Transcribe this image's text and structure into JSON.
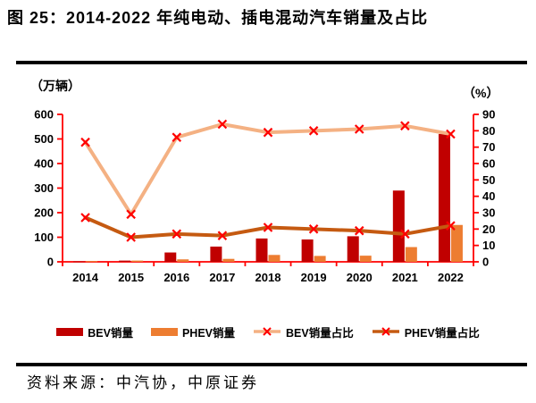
{
  "figure": {
    "title": "图 25：2014-2022 年纯电动、插电混动汽车销量及占比",
    "source": "资料来源：中汽协，中原证券"
  },
  "chart_data": {
    "type": "combo-bar-line",
    "categories": [
      "2014",
      "2015",
      "2016",
      "2017",
      "2018",
      "2019",
      "2020",
      "2021",
      "2022"
    ],
    "left_axis": {
      "label": "（万辆）",
      "min": 0,
      "max": 600,
      "step": 100,
      "ticks": [
        0,
        100,
        200,
        300,
        400,
        500,
        600
      ]
    },
    "right_axis": {
      "label": "（%）",
      "min": 0,
      "max": 90,
      "step": 10,
      "ticks": [
        0,
        10,
        20,
        30,
        40,
        50,
        60,
        70,
        80,
        90
      ]
    },
    "axis_color": "#ff0000",
    "grid": false,
    "legend_position": "bottom",
    "series": [
      {
        "name": "BEV销量",
        "type": "bar",
        "axis": "left",
        "color": "#c00000",
        "values": [
          2,
          5,
          38,
          62,
          95,
          91,
          104,
          290,
          520
        ]
      },
      {
        "name": "PHEV销量",
        "type": "bar",
        "axis": "left",
        "color": "#ed7d31",
        "values": [
          3,
          5,
          10,
          12,
          28,
          24,
          25,
          60,
          150
        ]
      },
      {
        "name": "BEV销量占比",
        "type": "line",
        "axis": "right",
        "color": "#f4b183",
        "marker": "x",
        "marker_color": "#ff0000",
        "values": [
          73,
          29,
          76,
          84,
          79,
          80,
          81,
          83,
          78
        ]
      },
      {
        "name": "PHEV销量占比",
        "type": "line",
        "axis": "right",
        "color": "#c55a11",
        "marker": "x",
        "marker_color": "#ff0000",
        "values": [
          27,
          15,
          17,
          16,
          21,
          20,
          19,
          17,
          22
        ]
      }
    ]
  }
}
